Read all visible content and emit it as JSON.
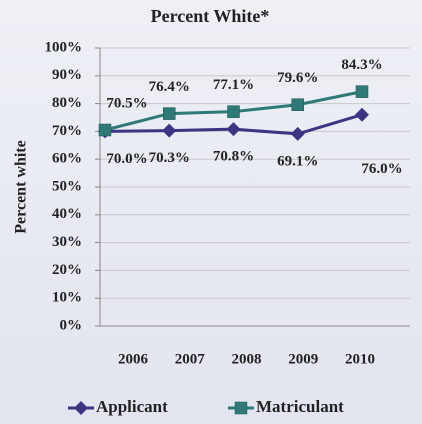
{
  "chart_data": {
    "type": "line",
    "title": "Percent White*",
    "y_label": "Percent white",
    "categories": [
      "2006",
      "2007",
      "2008",
      "2009",
      "2010"
    ],
    "series": [
      {
        "name": "Applicant",
        "color": "#3b3584",
        "marker": "diamond",
        "values": [
          70.0,
          70.3,
          70.8,
          69.1,
          76.0
        ],
        "value_labels": [
          "70.0%",
          "70.3%",
          "70.8%",
          "69.1%",
          "76.0%"
        ]
      },
      {
        "name": "Matriculant",
        "color": "#2e7a78",
        "marker": "square",
        "values": [
          70.5,
          76.4,
          77.1,
          79.6,
          84.3
        ],
        "value_labels": [
          "70.5%",
          "76.4%",
          "77.1%",
          "79.6%",
          "84.3%"
        ]
      }
    ],
    "ylim": [
      0,
      100
    ],
    "yticks": [
      {
        "value": 0,
        "label": "0%"
      },
      {
        "value": 10,
        "label": "10%"
      },
      {
        "value": 20,
        "label": "20%"
      },
      {
        "value": 30,
        "label": "30%"
      },
      {
        "value": 40,
        "label": "40%"
      },
      {
        "value": 50,
        "label": "50%"
      },
      {
        "value": 60,
        "label": "60%"
      },
      {
        "value": 70,
        "label": "70%"
      },
      {
        "value": 80,
        "label": "80%"
      },
      {
        "value": 90,
        "label": "90%"
      },
      {
        "value": 100,
        "label": "100%"
      }
    ],
    "grid": true,
    "legend": "bottom"
  }
}
